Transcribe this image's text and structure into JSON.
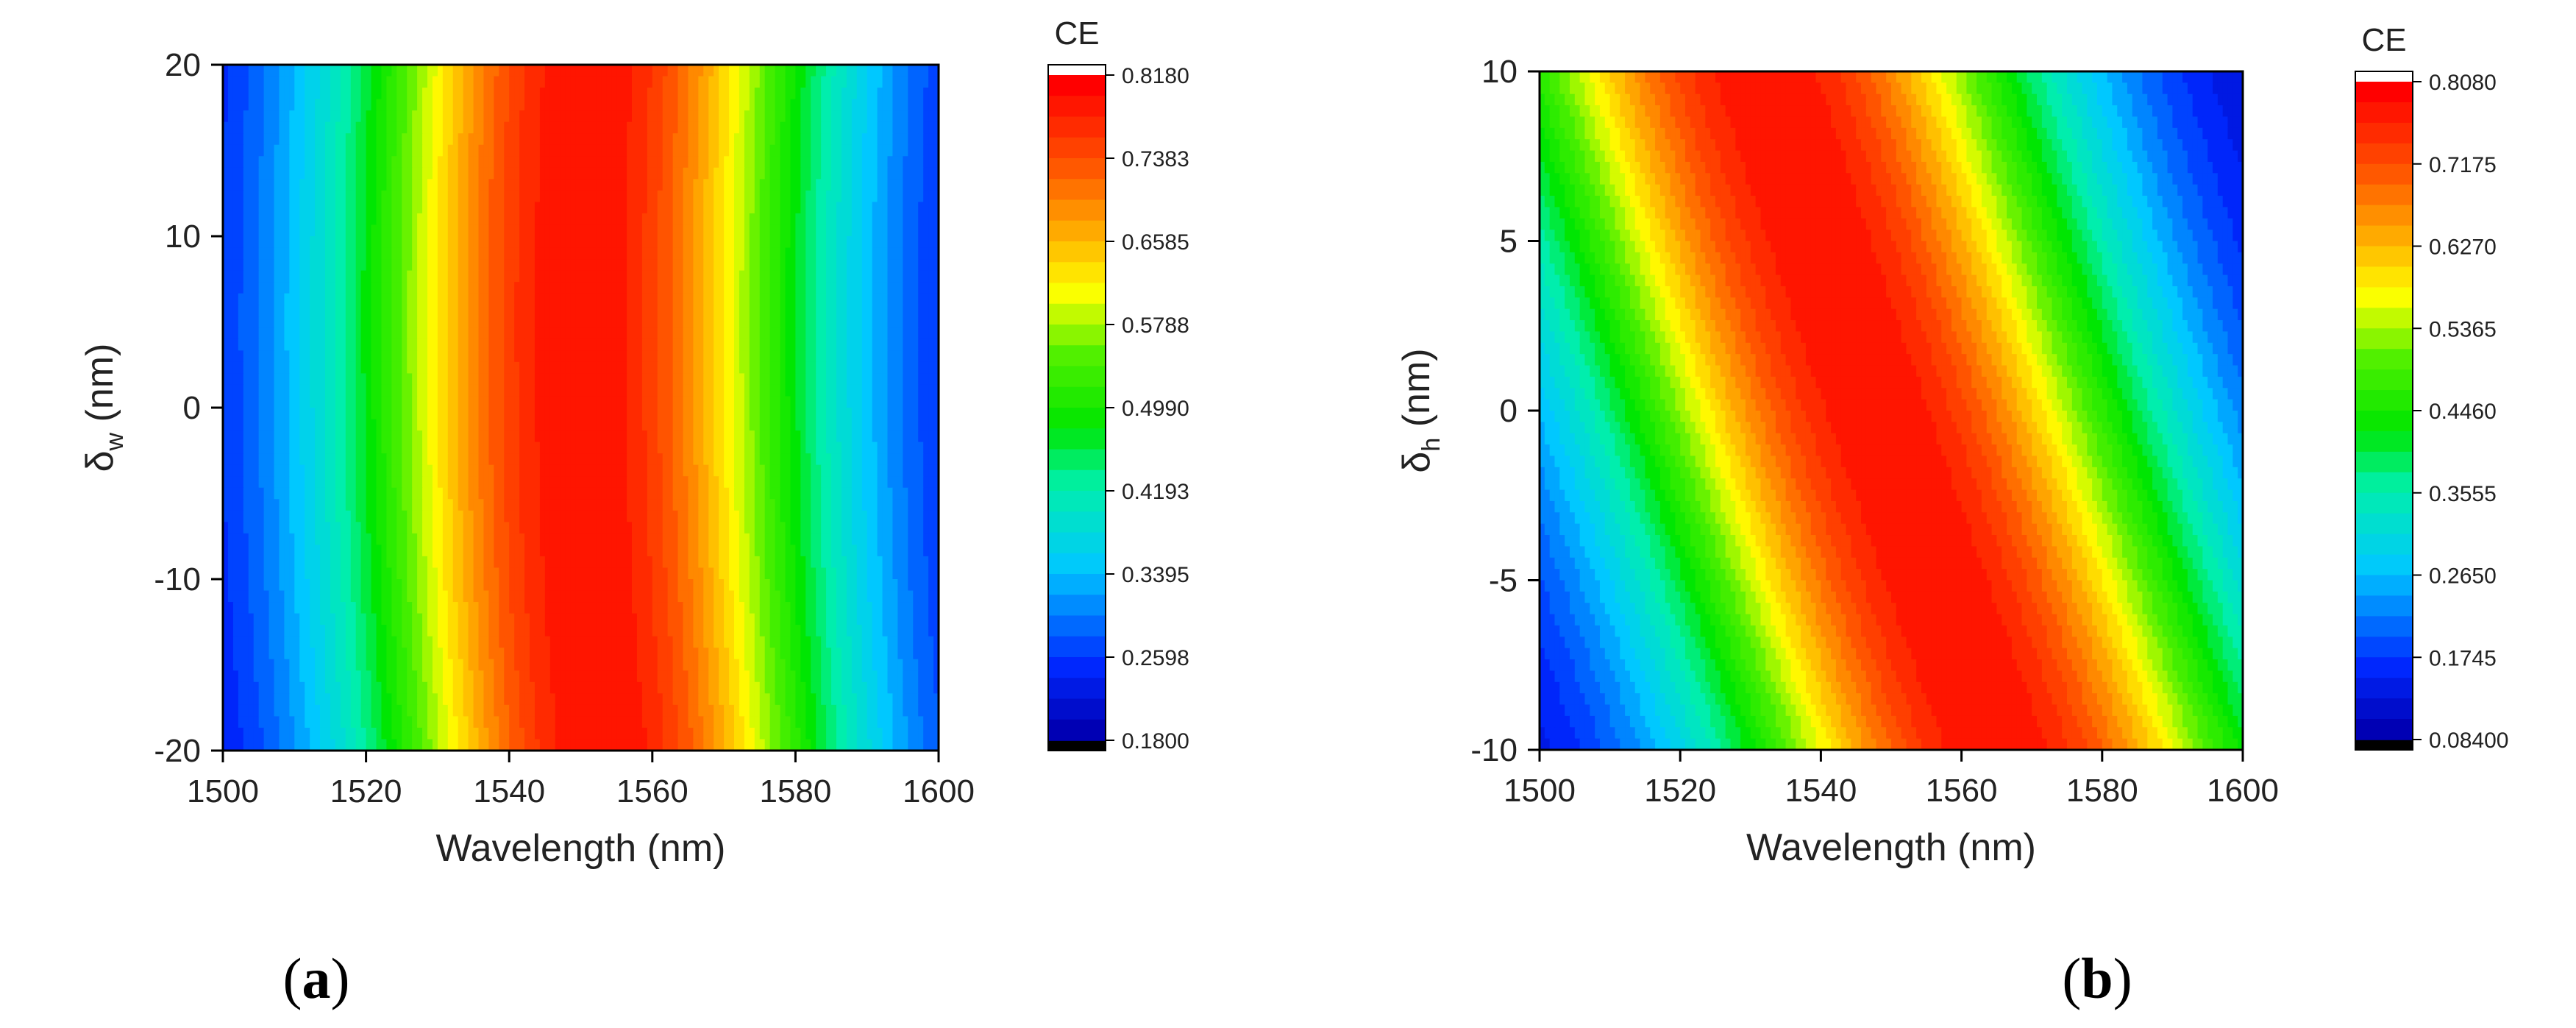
{
  "chart_data": [
    {
      "type": "heatmap",
      "panel_label": "a",
      "xlabel": "Wavelength (nm)",
      "ylabel_symbol": "δ",
      "ylabel_subscript": "w",
      "ylabel_unit": " (nm)",
      "xlim": [
        1500,
        1600
      ],
      "ylim": [
        -20,
        20
      ],
      "x_ticks": [
        1500,
        1520,
        1540,
        1560,
        1580,
        1600
      ],
      "y_ticks": [
        -20,
        -10,
        0,
        10,
        20
      ],
      "colorbar_title": "CE",
      "colorbar_ticks": [
        "0.8180",
        "0.7383",
        "0.6585",
        "0.5788",
        "0.4990",
        "0.4193",
        "0.3395",
        "0.2598",
        "0.1800"
      ],
      "zlim": [
        0.18,
        0.818
      ],
      "peak_center_wavelength_at_min_y": 1553,
      "peak_center_wavelength_at_max_y": 1551,
      "peak_center_wavelength_at_zero_y": 1550,
      "peak_halfwidth_nm": 44,
      "peak_shape_exponent": 2
    },
    {
      "type": "heatmap",
      "panel_label": "b",
      "xlabel": "Wavelength (nm)",
      "ylabel_symbol": "δ",
      "ylabel_subscript": "h",
      "ylabel_unit": " (nm)",
      "xlim": [
        1500,
        1600
      ],
      "ylim": [
        -10,
        10
      ],
      "x_ticks": [
        1500,
        1520,
        1540,
        1560,
        1580,
        1600
      ],
      "y_ticks": [
        -10,
        -5,
        0,
        5,
        10
      ],
      "colorbar_title": "CE",
      "colorbar_ticks": [
        "0.8080",
        "0.7175",
        "0.6270",
        "0.5365",
        "0.4460",
        "0.3555",
        "0.2650",
        "0.1745",
        "0.08400"
      ],
      "zlim": [
        0.084,
        0.808
      ],
      "peak_center_wavelength_at_min_y": 1565,
      "peak_center_wavelength_at_max_y": 1532,
      "peak_center_wavelength_at_zero_y": 1548,
      "peak_halfwidth_nm": 52,
      "peak_shape_exponent": 2
    }
  ]
}
